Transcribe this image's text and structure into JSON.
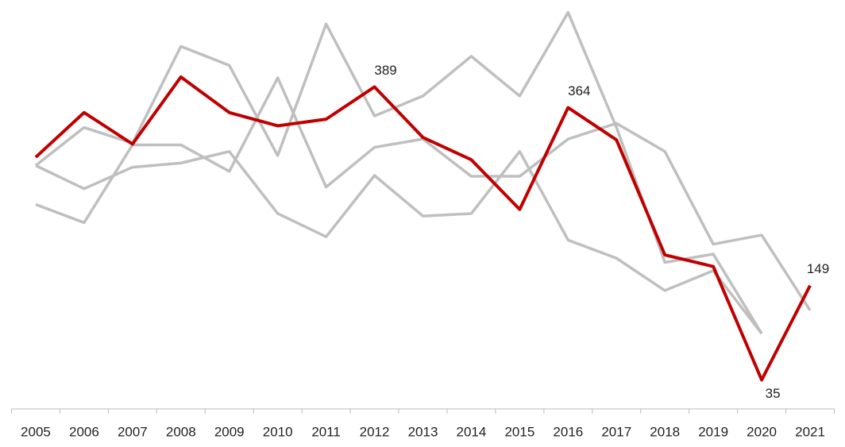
{
  "chart_data": {
    "type": "line",
    "categories": [
      "2005",
      "2006",
      "2007",
      "2008",
      "2009",
      "2010",
      "2011",
      "2012",
      "2013",
      "2014",
      "2015",
      "2016",
      "2017",
      "2018",
      "2019",
      "2020",
      "2021"
    ],
    "series": [
      {
        "color": "#bfbfbf",
        "values": [
          294,
          340,
          321,
          438,
          415,
          306,
          465,
          354,
          378,
          426,
          378,
          479,
          340,
          177,
          187,
          91,
          null
        ]
      },
      {
        "color": "#bfbfbf",
        "values": [
          294,
          266,
          292,
          297,
          311,
          236,
          208,
          282,
          233,
          236,
          311,
          204,
          182,
          143,
          167,
          91,
          null
        ]
      },
      {
        "color": "#bfbfbf",
        "values": [
          247,
          225,
          319,
          319,
          287,
          400,
          268,
          316,
          326,
          281,
          281,
          326,
          345,
          311,
          199,
          210,
          119
        ]
      },
      {
        "color": "#c00000",
        "values": [
          304,
          358,
          320,
          401,
          358,
          342,
          350,
          389,
          328,
          301,
          241,
          364,
          325,
          186,
          172,
          35,
          149
        ],
        "data_labels": [
          7,
          11,
          15,
          16
        ]
      }
    ],
    "ylim": [
      0,
      494
    ]
  }
}
